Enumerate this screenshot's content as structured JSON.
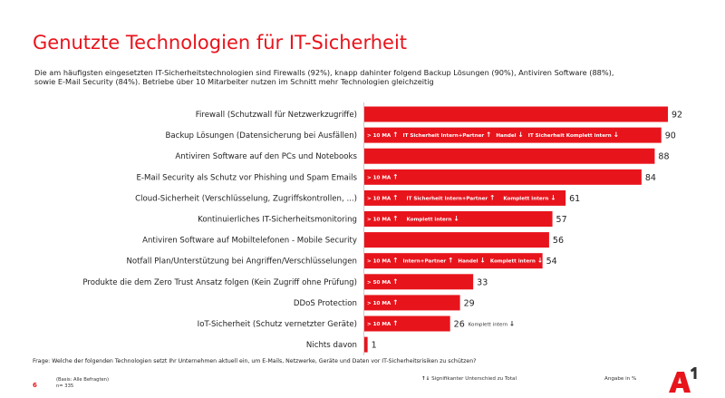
{
  "header": {
    "title": "Genutzte Technologien für IT-Sicherheit",
    "subtitle_line1": "Die am häufigsten eingesetzten IT-Sicherheitstechnologien sind Firewalls (92%), knapp dahinter folgend Backup Lösungen (90%), Antiviren Software (88%),",
    "subtitle_line2": "sowie E-Mail Security (84%). Betriebe über 10 Mitarbeiter nutzen im Schnitt mehr Technologien gleichzeitig"
  },
  "chart_data": {
    "type": "bar",
    "orientation": "horizontal",
    "title": "Genutzte Technologien für IT-Sicherheit",
    "xlabel": "",
    "ylabel": "",
    "unit": "%",
    "xlim": [
      0,
      100
    ],
    "grid": false,
    "bar_color": "#e8141c",
    "categories": [
      "Firewall (Schutzwall für Netzwerkzugriffe)",
      "Backup Lösungen (Datensicherung bei Ausfällen)",
      "Antiviren Software auf den PCs und Notebooks",
      "E-Mail Security als Schutz vor Phishing und Spam Emails",
      "Cloud-Sicherheit (Verschlüsselung, Zugriffskontrollen, ...)",
      "Kontinuierliches IT-Sicherheitsmonitoring",
      "Antiviren Software auf Mobiltelefonen - Mobile Security",
      "Notfall Plan/Unterstützung bei Angriffen/Verschlüsselungen",
      "Produkte die dem Zero Trust Ansatz folgen (Kein Zugriff ohne Prüfung)",
      "DDoS Protection",
      "IoT-Sicherheit (Schutz vernetzter Geräte)",
      "Nichts davon"
    ],
    "values": [
      92,
      90,
      88,
      84,
      61,
      57,
      56,
      54,
      33,
      29,
      26,
      1
    ],
    "annotations": [
      [],
      [
        {
          "text": "> 10 MA",
          "dir": "up"
        },
        {
          "text": "IT Sicherheit Intern+Partner",
          "dir": "up"
        },
        {
          "text": "Handel",
          "dir": "down"
        },
        {
          "text": "IT Sicherheit Komplett intern",
          "dir": "down"
        }
      ],
      [],
      [
        {
          "text": "> 10 MA",
          "dir": "up"
        }
      ],
      [
        {
          "text": "> 10 MA",
          "dir": "up"
        },
        {
          "text": "IT Sicherheit Intern+Partner",
          "dir": "up"
        },
        {
          "text": "Komplett intern",
          "dir": "down"
        }
      ],
      [
        {
          "text": "> 10 MA",
          "dir": "up"
        },
        {
          "text": "Komplett intern",
          "dir": "down"
        }
      ],
      [],
      [
        {
          "text": "> 10 MA",
          "dir": "up"
        },
        {
          "text": "Intern+Partner",
          "dir": "up"
        },
        {
          "text": "Handel",
          "dir": "down"
        },
        {
          "text": "Komplett intern",
          "dir": "down"
        }
      ],
      [
        {
          "text": "> 50 MA",
          "dir": "up"
        }
      ],
      [
        {
          "text": "> 10 MA",
          "dir": "up"
        }
      ],
      [
        {
          "text": "> 10 MA",
          "dir": "up"
        }
      ],
      []
    ],
    "outside_annotations": [
      {
        "index": 10,
        "text": "Komplett intern",
        "dir": "down"
      }
    ]
  },
  "footer": {
    "question": "Frage: Welche der folgenden Technologien setzt Ihr Unternehmen aktuell ein, um E-Mails, Netzwerke, Geräte und Daten vor IT-Sicherheitsrisiken zu schützen?",
    "page_number": "6",
    "basis": "(Basis: Alle Befragten)",
    "n": "n= 335",
    "legend_icons": "↑↓",
    "legend_text": "Signifikanter Unterschied zu Total",
    "unit_note": "Angabe in %",
    "logo_text": "A1"
  },
  "colors": {
    "accent": "#e8141c",
    "text": "#222222"
  }
}
